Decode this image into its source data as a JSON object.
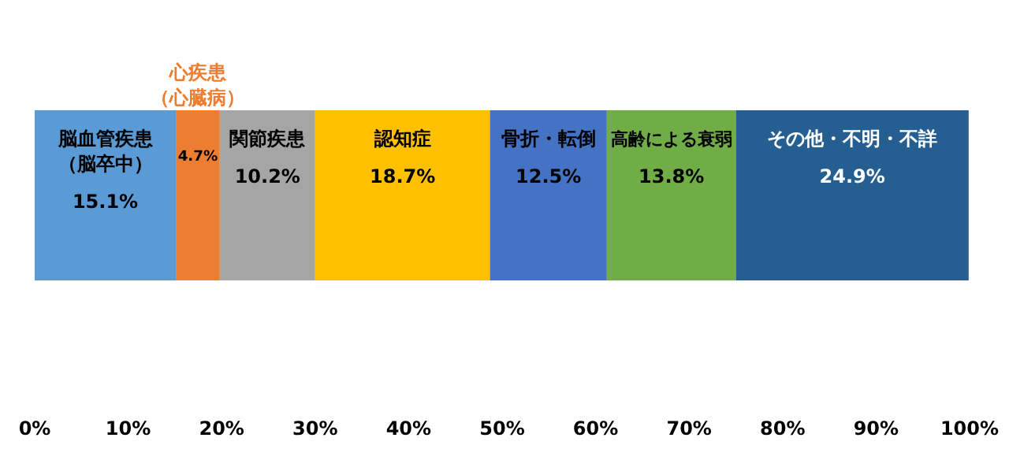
{
  "chart_data": {
    "type": "bar",
    "orientation": "horizontal",
    "stacked": true,
    "categories": [
      null
    ],
    "xlim": [
      0,
      100
    ],
    "xticks": [
      {
        "value": 0,
        "label": "0%"
      },
      {
        "value": 10,
        "label": "10%"
      },
      {
        "value": 20,
        "label": "20%"
      },
      {
        "value": 30,
        "label": "30%"
      },
      {
        "value": 40,
        "label": "40%"
      },
      {
        "value": 50,
        "label": "50%"
      },
      {
        "value": 60,
        "label": "60%"
      },
      {
        "value": 70,
        "label": "70%"
      },
      {
        "value": 80,
        "label": "80%"
      },
      {
        "value": 90,
        "label": "90%"
      },
      {
        "value": 100,
        "label": "100%"
      }
    ],
    "legend": false,
    "grid": false,
    "series": [
      {
        "name": "脳血管疾患（脳卒中）",
        "color": "#5b9bd5",
        "values": [
          15.1
        ],
        "value_labels": [
          "15.1%"
        ]
      },
      {
        "name": "心疾患（心臓病）",
        "color": "#ed7d31",
        "values": [
          4.7
        ],
        "value_labels": [
          "4.7%"
        ]
      },
      {
        "name": "関節疾患",
        "color": "#a5a5a5",
        "values": [
          10.2
        ],
        "value_labels": [
          "10.2%"
        ]
      },
      {
        "name": "認知症",
        "color": "#ffc000",
        "values": [
          18.7
        ],
        "value_labels": [
          "18.7%"
        ]
      },
      {
        "name": "骨折・転倒",
        "color": "#4472c4",
        "values": [
          12.5
        ],
        "value_labels": [
          "12.5%"
        ]
      },
      {
        "name": "高齢による衰弱",
        "color": "#70ad47",
        "values": [
          13.8
        ],
        "value_labels": [
          "13.8%"
        ]
      },
      {
        "name": "その他・不明・不詳",
        "color": "#255e91",
        "values": [
          24.9
        ],
        "value_labels": [
          "24.9%"
        ]
      }
    ]
  }
}
